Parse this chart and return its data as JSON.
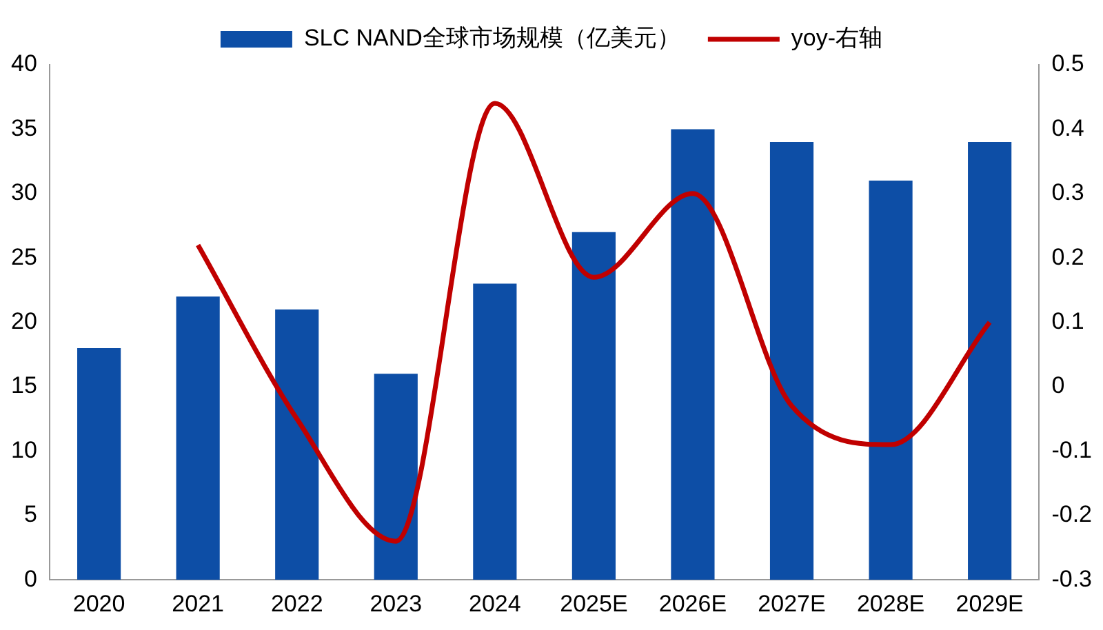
{
  "chart_data": {
    "type": "bar",
    "categories": [
      "2020",
      "2021",
      "2022",
      "2023",
      "2024",
      "2025E",
      "2026E",
      "2027E",
      "2028E",
      "2029E"
    ],
    "series": [
      {
        "name": "SLC NAND全球市场规模（亿美元）",
        "color": "#0d4ea6",
        "values": [
          18,
          22,
          21,
          16,
          23,
          27,
          35,
          34,
          31,
          34
        ]
      },
      {
        "name": "yoy-右轴",
        "type": "line",
        "axis": "y2",
        "color": "#c00000",
        "values": [
          null,
          0.22,
          -0.05,
          -0.24,
          0.44,
          0.17,
          0.3,
          -0.03,
          -0.09,
          0.1
        ]
      }
    ],
    "ylim": [
      0,
      40
    ],
    "yticks": [
      0,
      5,
      10,
      15,
      20,
      25,
      30,
      35,
      40
    ],
    "y2lim": [
      -0.3,
      0.5
    ],
    "y2ticks": [
      -0.3,
      -0.2,
      -0.1,
      0,
      0.1,
      0.2,
      0.3,
      0.4,
      0.5
    ],
    "grid": false,
    "legend": "top",
    "marker": "none",
    "line_style": "solid"
  }
}
